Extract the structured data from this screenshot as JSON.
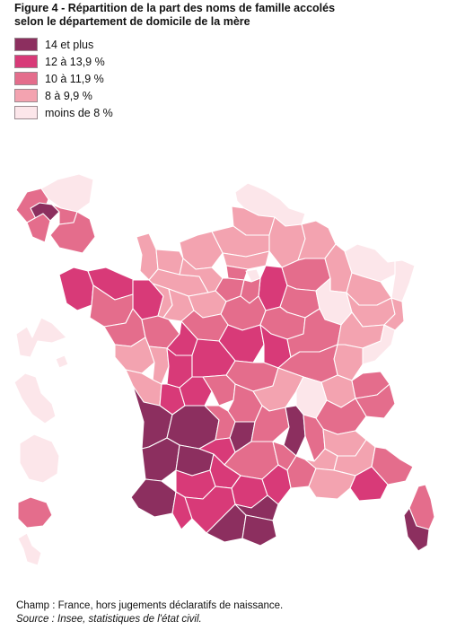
{
  "figure": {
    "title_line1": "Figure 4 - Répartition de la part des noms de famille accolés",
    "title_line2": "selon le département de domicile de la mère"
  },
  "legend": [
    {
      "label": "14 et plus",
      "color": "#8c2f5f"
    },
    {
      "label": "12 à 13,9 %",
      "color": "#d83a78"
    },
    {
      "label": "10 à 11,9 %",
      "color": "#e46d8c"
    },
    {
      "label": "8 à 9,9 %",
      "color": "#f3a3b0"
    },
    {
      "label": "moins de 8 %",
      "color": "#fce6ea"
    }
  ],
  "footer": {
    "champ": "Champ : France, hors jugements déclaratifs de naissance.",
    "source": "Source : Insee, statistiques de l'état civil."
  }
}
